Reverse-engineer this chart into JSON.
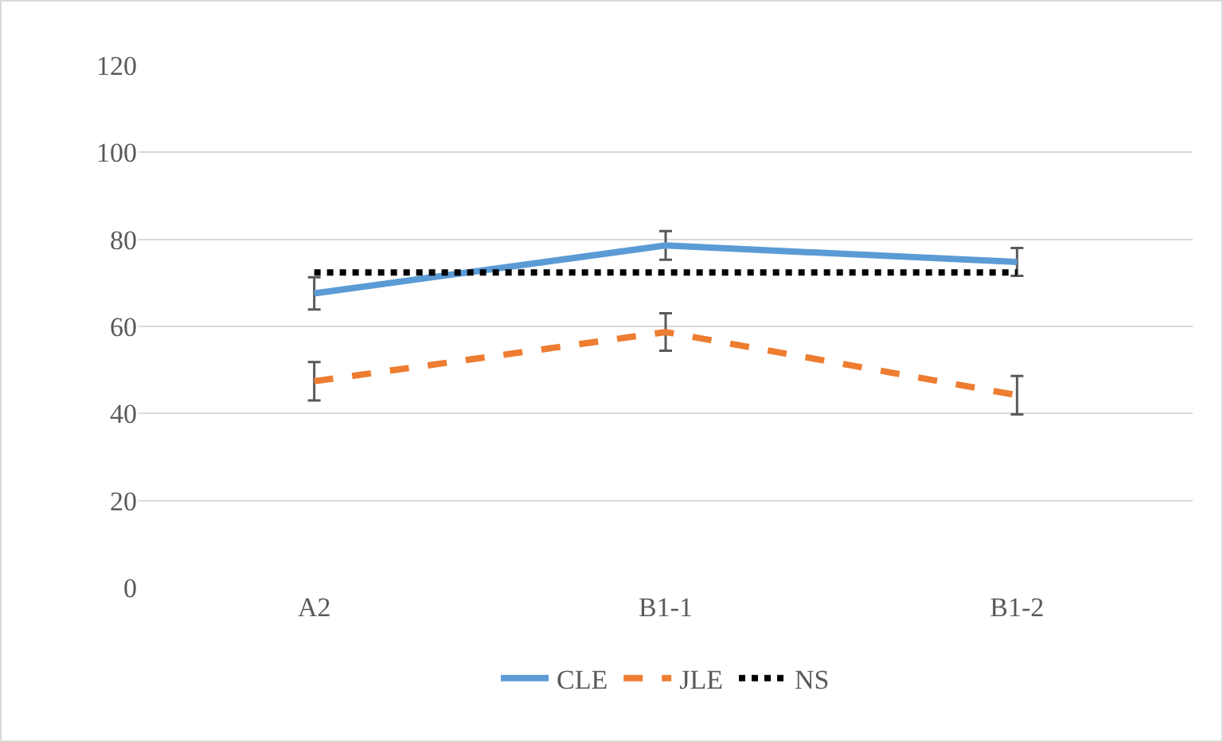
{
  "chart_data": {
    "type": "line",
    "categories": [
      "A2",
      "B1-1",
      "B1-2"
    ],
    "series": [
      {
        "name": "CLE",
        "color": "#5b9bd5",
        "values": [
          67.6,
          78.6,
          74.8
        ],
        "errors": [
          3.7,
          3.3,
          3.2
        ],
        "line_style": "solid"
      },
      {
        "name": "JLE",
        "color": "#ed7d31",
        "values": [
          47.4,
          58.7,
          44.2
        ],
        "errors": [
          4.4,
          4.3,
          4.4
        ],
        "line_style": "dashed"
      },
      {
        "name": "NS",
        "color": "#000000",
        "values": [
          72.4,
          72.4,
          72.4
        ],
        "line_style": "dotted"
      }
    ],
    "ylim": [
      0,
      120
    ],
    "yticks": [
      0,
      20,
      40,
      60,
      80,
      100,
      120
    ],
    "grid": "y",
    "legend": "bottom",
    "marker": "none"
  }
}
